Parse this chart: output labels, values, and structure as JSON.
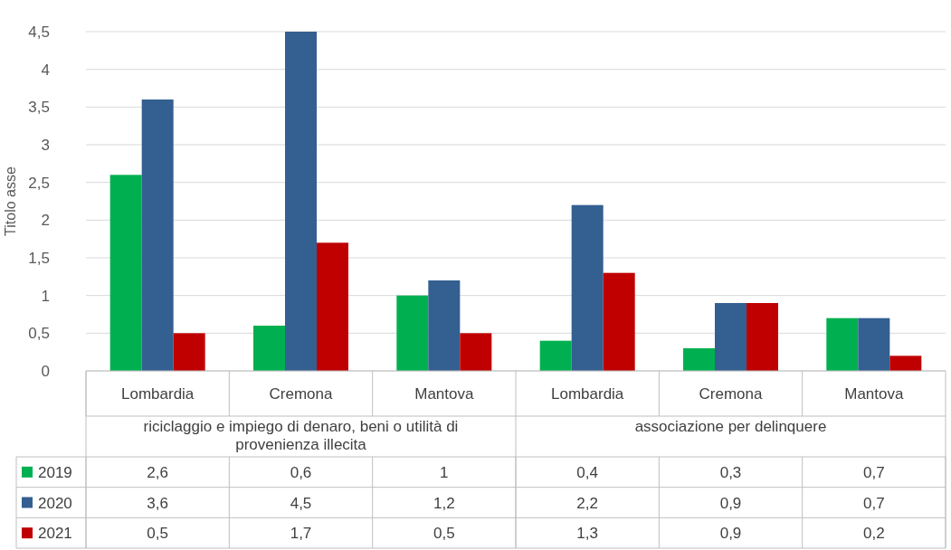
{
  "chart_data": {
    "type": "bar",
    "ylabel": "Titolo asse",
    "categories": [
      "Lombardia",
      "Cremona",
      "Mantova",
      "Lombardia",
      "Cremona",
      "Mantova"
    ],
    "annotations": [
      "riciclaggio e impiego di denaro, beni o utilità di provenienza illecita",
      "associazione per delinquere"
    ],
    "series": [
      {
        "name": "2019",
        "color": "#00b050",
        "values": [
          2.6,
          0.6,
          1,
          0.4,
          0.3,
          0.7
        ],
        "value_labels": [
          "2,6",
          "0,6",
          "1",
          "0,4",
          "0,3",
          "0,7"
        ]
      },
      {
        "name": "2020",
        "color": "#335f91",
        "values": [
          3.6,
          4.5,
          1.2,
          2.2,
          0.9,
          0.7
        ],
        "value_labels": [
          "3,6",
          "4,5",
          "1,2",
          "2,2",
          "0,9",
          "0,7"
        ]
      },
      {
        "name": "2021",
        "color": "#c00000",
        "values": [
          0.5,
          1.7,
          0.5,
          1.3,
          0.9,
          0.2
        ],
        "value_labels": [
          "0,5",
          "1,7",
          "0,5",
          "1,3",
          "0,9",
          "0,2"
        ]
      }
    ],
    "ylim": [
      0,
      4.5
    ],
    "yticks": [
      0,
      {
        "value": 0.5,
        "label": "0,5"
      },
      1,
      {
        "value": 1.5,
        "label": "1,5"
      },
      2,
      {
        "value": 2.5,
        "label": "2,5"
      },
      3,
      {
        "value": 3.5,
        "label": "3,5"
      },
      4,
      {
        "value": 4.5,
        "label": "4,5"
      }
    ],
    "grid": "y",
    "legend": "bottom"
  }
}
